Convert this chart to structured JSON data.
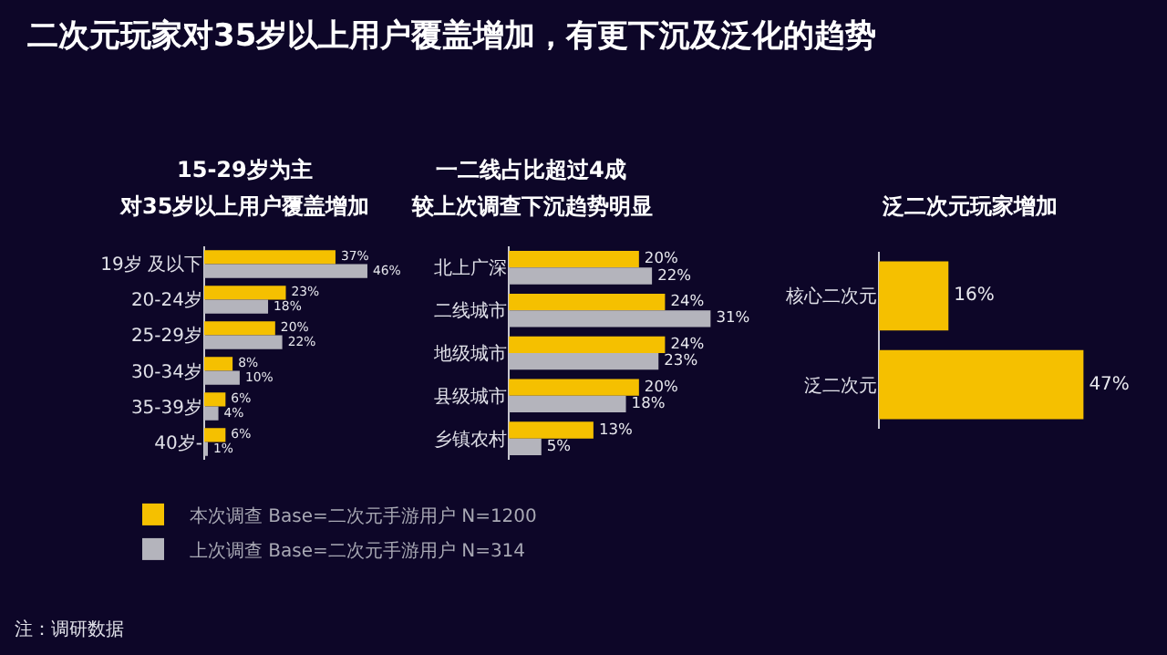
{
  "chart_data": [
    {
      "type": "bar",
      "orientation": "horizontal",
      "title": "15-29岁为主",
      "subtitle": "对35岁以上用户覆盖增加",
      "categories": [
        "19岁 及以下",
        "20-24岁",
        "25-29岁",
        "30-34岁",
        "35-39岁",
        "40岁-"
      ],
      "series": [
        {
          "name": "本次调查 Base=二次元手游用户 N=1200",
          "color": "#f5c000",
          "values": [
            37,
            23,
            20,
            8,
            6,
            6
          ],
          "value_labels": [
            "37%",
            "23%",
            "20%",
            "8%",
            "6%",
            "6%"
          ]
        },
        {
          "name": "上次调查 Base=二次元手游用户 N=314",
          "color": "#b4b4bc",
          "values": [
            46,
            18,
            22,
            10,
            4,
            1
          ],
          "value_labels": [
            "46%",
            "18%",
            "22%",
            "10%",
            "4%",
            "1%"
          ]
        }
      ],
      "legend": "bottom",
      "annotations": [
        "二次元玩家对35岁以上用户覆盖增加，有更下沉及泛化的趋势",
        "注：调研数据"
      ]
    },
    {
      "type": "bar",
      "orientation": "horizontal",
      "title": "一二线占比超过4成",
      "subtitle": "较上次调查下沉趋势明显",
      "categories": [
        "北上广深",
        "二线城市",
        "地级城市",
        "县级城市",
        "乡镇农村"
      ],
      "series": [
        {
          "color": "#f5c000",
          "values": [
            20,
            24,
            24,
            20,
            13
          ],
          "value_labels": [
            "20%",
            "24%",
            "24%",
            "20%",
            "13%"
          ]
        },
        {
          "color": "#b4b4bc",
          "values": [
            22,
            31,
            23,
            18,
            5
          ],
          "value_labels": [
            "22%",
            "31%",
            "23%",
            "18%",
            "5%"
          ]
        }
      ]
    },
    {
      "type": "bar",
      "orientation": "horizontal",
      "title": "泛二次元玩家增加",
      "categories": [
        "核心二次元",
        "泛二次元"
      ],
      "values": [
        16,
        47
      ],
      "color": "#f5c000",
      "value_labels": [
        "16%",
        "47%"
      ]
    }
  ]
}
